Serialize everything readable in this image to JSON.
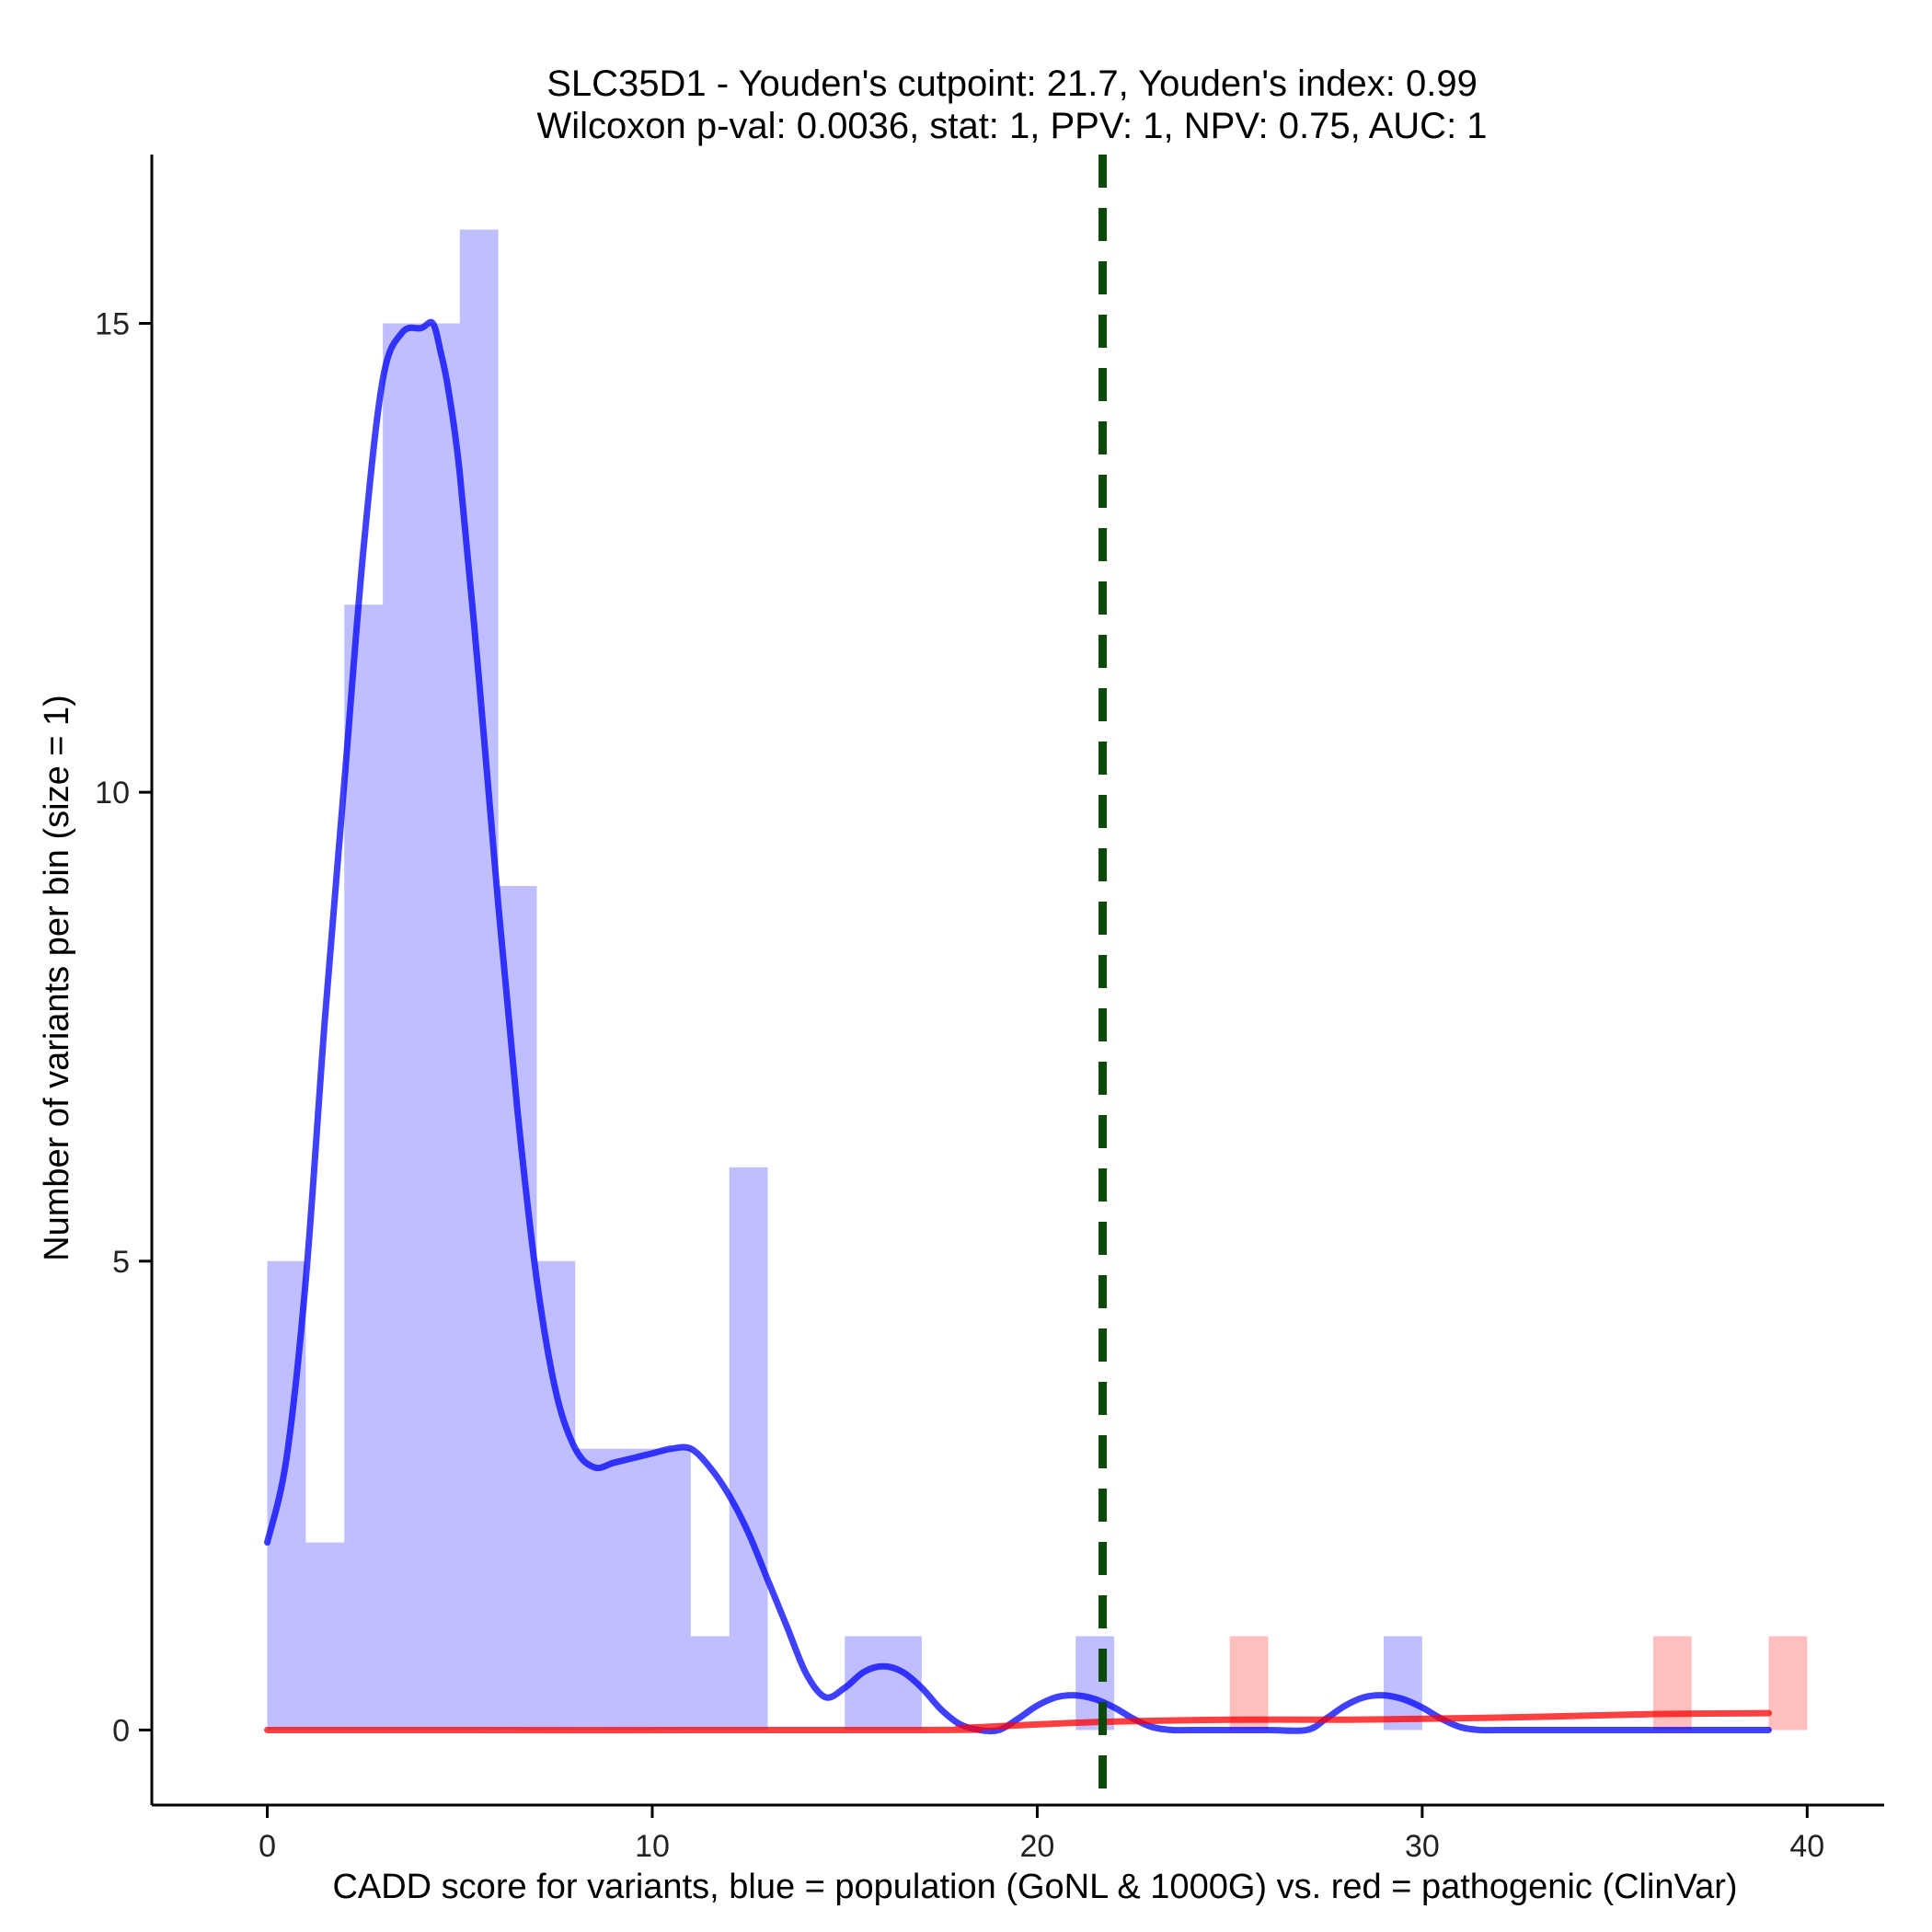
{
  "chart_data": {
    "type": "bar",
    "title": "SLC35D1 - Youden's cutpoint: 21.7, Youden's index: 0.99",
    "subtitle": "Wilcoxon p-val: 0.0036, stat: 1, PPV: 1, NPV: 0.75, AUC: 1",
    "xlabel": "CADD score for variants, blue = population (GoNL & 1000G) vs. red = pathogenic (ClinVar)",
    "ylabel": "Number of variants per bin (size = 1)",
    "xlim": [
      -3,
      42
    ],
    "ylim": [
      -0.8,
      16.8
    ],
    "x_ticks": [
      0,
      10,
      20,
      30,
      40
    ],
    "y_ticks": [
      0,
      5,
      10,
      15
    ],
    "bin_width": 1,
    "cutpoint": 21.7,
    "series": [
      {
        "name": "population (GoNL & 1000G)",
        "color": "#0000ff",
        "bins": [
          {
            "start": 0,
            "count": 5
          },
          {
            "start": 1,
            "count": 2
          },
          {
            "start": 2,
            "count": 12
          },
          {
            "start": 3,
            "count": 15
          },
          {
            "start": 4,
            "count": 15
          },
          {
            "start": 5,
            "count": 16
          },
          {
            "start": 6,
            "count": 9
          },
          {
            "start": 7,
            "count": 5
          },
          {
            "start": 8,
            "count": 3
          },
          {
            "start": 9,
            "count": 3
          },
          {
            "start": 10,
            "count": 3
          },
          {
            "start": 11,
            "count": 1
          },
          {
            "start": 12,
            "count": 6
          },
          {
            "start": 15,
            "count": 1
          },
          {
            "start": 16,
            "count": 1
          },
          {
            "start": 21,
            "count": 1
          },
          {
            "start": 29,
            "count": 1
          }
        ],
        "density": {
          "x": [
            0,
            0.5,
            1,
            1.5,
            2,
            2.5,
            3,
            3.5,
            4,
            4.3,
            4.5,
            4.7,
            5,
            5.5,
            6,
            6.5,
            7,
            7.5,
            8,
            8.5,
            9,
            9.5,
            10,
            10.5,
            11,
            11.5,
            12,
            12.5,
            13,
            13.5,
            14,
            14.5,
            15,
            15.5,
            16,
            16.5,
            17,
            17.5,
            18,
            18.5,
            19,
            19.5,
            20,
            20.5,
            21,
            21.5,
            22,
            22.5,
            23,
            23.5,
            24,
            25,
            26,
            27,
            27.5,
            28,
            28.5,
            29,
            29.5,
            30,
            30.5,
            31,
            31.5,
            32,
            34,
            36,
            38,
            39
          ],
          "y": [
            2.0,
            2.9,
            4.8,
            7.6,
            10.1,
            12.6,
            14.4,
            14.9,
            14.95,
            15.0,
            14.7,
            14.3,
            13.4,
            11.2,
            8.8,
            6.6,
            4.8,
            3.6,
            3.0,
            2.8,
            2.85,
            2.9,
            2.95,
            3.0,
            3.0,
            2.8,
            2.5,
            2.1,
            1.6,
            1.1,
            0.6,
            0.35,
            0.45,
            0.62,
            0.68,
            0.62,
            0.45,
            0.22,
            0.06,
            0.0,
            0.0,
            0.12,
            0.26,
            0.35,
            0.37,
            0.33,
            0.24,
            0.12,
            0.03,
            0.0,
            0.0,
            0.0,
            0.0,
            0.0,
            0.12,
            0.26,
            0.35,
            0.37,
            0.33,
            0.24,
            0.12,
            0.03,
            0.0,
            0.0,
            0.0,
            0.0,
            0.0,
            0.0
          ]
        }
      },
      {
        "name": "pathogenic (ClinVar)",
        "color": "#ff0000",
        "bins": [
          {
            "start": 25,
            "count": 1
          },
          {
            "start": 36,
            "count": 1
          },
          {
            "start": 39,
            "count": 1
          }
        ],
        "density": {
          "x": [
            0,
            17,
            18,
            20,
            22,
            25,
            28,
            30,
            33,
            36,
            39
          ],
          "y": [
            0,
            0,
            0.02,
            0.06,
            0.09,
            0.11,
            0.11,
            0.12,
            0.14,
            0.17,
            0.18
          ]
        }
      }
    ]
  }
}
